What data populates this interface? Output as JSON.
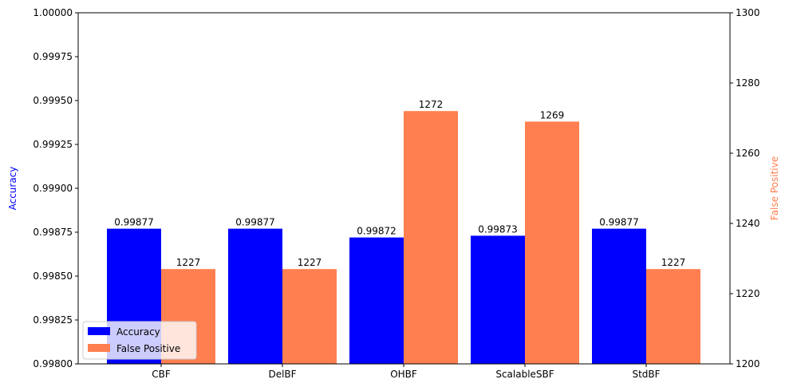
{
  "chart_data": {
    "type": "bar",
    "categories": [
      "CBF",
      "DelBF",
      "OHBF",
      "ScalableSBF",
      "StdBF"
    ],
    "series": [
      {
        "name": "Accuracy",
        "axis": "left",
        "color": "#0000ff",
        "values": [
          0.99877,
          0.99877,
          0.99872,
          0.99873,
          0.99877
        ],
        "labels": [
          "0.99877",
          "0.99877",
          "0.99872",
          "0.99873",
          "0.99877"
        ]
      },
      {
        "name": "False Positive",
        "axis": "right",
        "color": "#ff7f50",
        "values": [
          1227,
          1227,
          1272,
          1269,
          1227
        ],
        "labels": [
          "1227",
          "1227",
          "1272",
          "1269",
          "1227"
        ]
      }
    ],
    "ylabel_left": "Accuracy",
    "ylabel_left_color": "#0000ff",
    "ylabel_right": "False Positive",
    "ylabel_right_color": "#ff7f50",
    "ylim_left": [
      0.998,
      1.0
    ],
    "ylim_right": [
      1200,
      1300
    ],
    "yticks_left": [
      "0.99800",
      "0.99825",
      "0.99850",
      "0.99875",
      "0.99900",
      "0.99925",
      "0.99950",
      "0.99975",
      "1.00000"
    ],
    "yticks_right": [
      "1200",
      "1220",
      "1240",
      "1260",
      "1280",
      "1300"
    ],
    "legend_position": "lower-left",
    "grid": false
  }
}
